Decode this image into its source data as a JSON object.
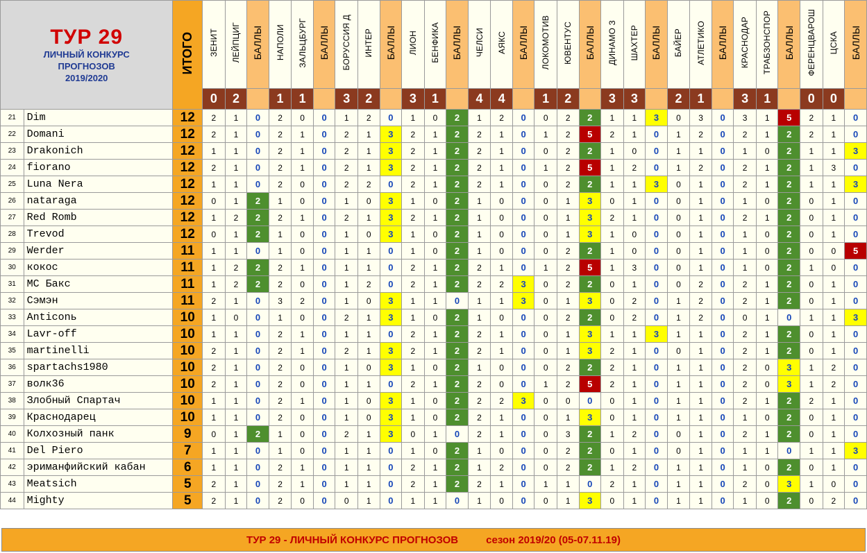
{
  "title": {
    "tur": "ТУР 29",
    "line1": "ЛИЧНЫЙ КОНКУРС",
    "line2": "ПРОГНОЗОВ",
    "season": "2019/2020"
  },
  "itogo_label": "ИТОГО",
  "balls_label": "БАЛЛЫ",
  "matches": [
    {
      "home": "ЗЕНИТ",
      "away": "ЛЕЙПЦИГ",
      "score": [
        "0",
        "2"
      ]
    },
    {
      "home": "НАПОЛИ",
      "away": "ЗАЛЬЦБУРГ",
      "score": [
        "1",
        "1"
      ]
    },
    {
      "home": "БОРУССИЯ Д",
      "away": "ИНТЕР",
      "score": [
        "3",
        "2"
      ]
    },
    {
      "home": "ЛИОН",
      "away": "БЕНФИКА",
      "score": [
        "3",
        "1"
      ]
    },
    {
      "home": "ЧЕЛСИ",
      "away": "АЯКС",
      "score": [
        "4",
        "4"
      ]
    },
    {
      "home": "ЛОКОМОТИВ",
      "away": "ЮВЕНТУС",
      "score": [
        "1",
        "2"
      ]
    },
    {
      "home": "ДИНАМО З",
      "away": "ШАХТЕР",
      "score": [
        "3",
        "3"
      ]
    },
    {
      "home": "БАЙЕР",
      "away": "АТЛЕТИКО",
      "score": [
        "2",
        "1"
      ]
    },
    {
      "home": "КРАСНОДАР",
      "away": "ТРАБЗОНСПОР",
      "score": [
        "3",
        "1"
      ]
    },
    {
      "home": "ФЕРЕНЦВАРОШ",
      "away": "ЦСКА",
      "score": [
        "0",
        "0"
      ]
    }
  ],
  "rows": [
    {
      "n": "21",
      "name": "Dim",
      "total": "12",
      "cells": [
        [
          "2",
          "1",
          "0"
        ],
        [
          "2",
          "0",
          "0"
        ],
        [
          "1",
          "2",
          "0"
        ],
        [
          "1",
          "0",
          "2"
        ],
        [
          "1",
          "2",
          "0"
        ],
        [
          "0",
          "2",
          "2"
        ],
        [
          "1",
          "1",
          "3"
        ],
        [
          "0",
          "3",
          "0"
        ],
        [
          "3",
          "1",
          "5"
        ],
        [
          "2",
          "1",
          "0"
        ]
      ]
    },
    {
      "n": "22",
      "name": "Domani",
      "total": "12",
      "cells": [
        [
          "2",
          "1",
          "0"
        ],
        [
          "2",
          "1",
          "0"
        ],
        [
          "2",
          "1",
          "3"
        ],
        [
          "2",
          "1",
          "2"
        ],
        [
          "2",
          "1",
          "0"
        ],
        [
          "1",
          "2",
          "5"
        ],
        [
          "2",
          "1",
          "0"
        ],
        [
          "1",
          "2",
          "0"
        ],
        [
          "2",
          "1",
          "2"
        ],
        [
          "2",
          "1",
          "0"
        ]
      ]
    },
    {
      "n": "23",
      "name": "Drakonich",
      "total": "12",
      "cells": [
        [
          "1",
          "1",
          "0"
        ],
        [
          "2",
          "1",
          "0"
        ],
        [
          "2",
          "1",
          "3"
        ],
        [
          "2",
          "1",
          "2"
        ],
        [
          "2",
          "1",
          "0"
        ],
        [
          "0",
          "2",
          "2"
        ],
        [
          "1",
          "0",
          "0"
        ],
        [
          "1",
          "1",
          "0"
        ],
        [
          "1",
          "0",
          "2"
        ],
        [
          "1",
          "1",
          "3"
        ]
      ]
    },
    {
      "n": "24",
      "name": "fiorano",
      "total": "12",
      "cells": [
        [
          "2",
          "1",
          "0"
        ],
        [
          "2",
          "1",
          "0"
        ],
        [
          "2",
          "1",
          "3"
        ],
        [
          "2",
          "1",
          "2"
        ],
        [
          "2",
          "1",
          "0"
        ],
        [
          "1",
          "2",
          "5"
        ],
        [
          "1",
          "2",
          "0"
        ],
        [
          "1",
          "2",
          "0"
        ],
        [
          "2",
          "1",
          "2"
        ],
        [
          "1",
          "3",
          "0"
        ]
      ]
    },
    {
      "n": "25",
      "name": "Luna Nera",
      "total": "12",
      "cells": [
        [
          "1",
          "1",
          "0"
        ],
        [
          "2",
          "0",
          "0"
        ],
        [
          "2",
          "2",
          "0"
        ],
        [
          "2",
          "1",
          "2"
        ],
        [
          "2",
          "1",
          "0"
        ],
        [
          "0",
          "2",
          "2"
        ],
        [
          "1",
          "1",
          "3"
        ],
        [
          "0",
          "1",
          "0"
        ],
        [
          "2",
          "1",
          "2"
        ],
        [
          "1",
          "1",
          "3"
        ]
      ]
    },
    {
      "n": "26",
      "name": "nataraga",
      "total": "12",
      "cells": [
        [
          "0",
          "1",
          "2"
        ],
        [
          "1",
          "0",
          "0"
        ],
        [
          "1",
          "0",
          "3"
        ],
        [
          "1",
          "0",
          "2"
        ],
        [
          "1",
          "0",
          "0"
        ],
        [
          "0",
          "1",
          "3"
        ],
        [
          "0",
          "1",
          "0"
        ],
        [
          "0",
          "1",
          "0"
        ],
        [
          "1",
          "0",
          "2"
        ],
        [
          "0",
          "1",
          "0"
        ]
      ]
    },
    {
      "n": "27",
      "name": "Red Romb",
      "total": "12",
      "cells": [
        [
          "1",
          "2",
          "2"
        ],
        [
          "2",
          "1",
          "0"
        ],
        [
          "2",
          "1",
          "3"
        ],
        [
          "2",
          "1",
          "2"
        ],
        [
          "1",
          "0",
          "0"
        ],
        [
          "0",
          "1",
          "3"
        ],
        [
          "2",
          "1",
          "0"
        ],
        [
          "0",
          "1",
          "0"
        ],
        [
          "2",
          "1",
          "2"
        ],
        [
          "0",
          "1",
          "0"
        ]
      ]
    },
    {
      "n": "28",
      "name": "Trevod",
      "total": "12",
      "cells": [
        [
          "0",
          "1",
          "2"
        ],
        [
          "1",
          "0",
          "0"
        ],
        [
          "1",
          "0",
          "3"
        ],
        [
          "1",
          "0",
          "2"
        ],
        [
          "1",
          "0",
          "0"
        ],
        [
          "0",
          "1",
          "3"
        ],
        [
          "1",
          "0",
          "0"
        ],
        [
          "0",
          "1",
          "0"
        ],
        [
          "1",
          "0",
          "2"
        ],
        [
          "0",
          "1",
          "0"
        ]
      ]
    },
    {
      "n": "29",
      "name": "Werder",
      "total": "11",
      "cells": [
        [
          "1",
          "1",
          "0"
        ],
        [
          "1",
          "0",
          "0"
        ],
        [
          "1",
          "1",
          "0"
        ],
        [
          "1",
          "0",
          "2"
        ],
        [
          "1",
          "0",
          "0"
        ],
        [
          "0",
          "2",
          "2"
        ],
        [
          "1",
          "0",
          "0"
        ],
        [
          "0",
          "1",
          "0"
        ],
        [
          "1",
          "0",
          "2"
        ],
        [
          "0",
          "0",
          "5"
        ]
      ]
    },
    {
      "n": "30",
      "name": "кокос",
      "total": "11",
      "cells": [
        [
          "1",
          "2",
          "2"
        ],
        [
          "2",
          "1",
          "0"
        ],
        [
          "1",
          "1",
          "0"
        ],
        [
          "2",
          "1",
          "2"
        ],
        [
          "2",
          "1",
          "0"
        ],
        [
          "1",
          "2",
          "5"
        ],
        [
          "1",
          "3",
          "0"
        ],
        [
          "0",
          "1",
          "0"
        ],
        [
          "1",
          "0",
          "2"
        ],
        [
          "1",
          "0",
          "0"
        ]
      ]
    },
    {
      "n": "31",
      "name": "МС Бакс",
      "total": "11",
      "cells": [
        [
          "1",
          "2",
          "2"
        ],
        [
          "2",
          "0",
          "0"
        ],
        [
          "1",
          "2",
          "0"
        ],
        [
          "2",
          "1",
          "2"
        ],
        [
          "2",
          "2",
          "3"
        ],
        [
          "0",
          "2",
          "2"
        ],
        [
          "0",
          "1",
          "0"
        ],
        [
          "0",
          "2",
          "0"
        ],
        [
          "2",
          "1",
          "2"
        ],
        [
          "0",
          "1",
          "0"
        ]
      ]
    },
    {
      "n": "32",
      "name": "Сэмэн",
      "total": "11",
      "cells": [
        [
          "2",
          "1",
          "0"
        ],
        [
          "3",
          "2",
          "0"
        ],
        [
          "1",
          "0",
          "3"
        ],
        [
          "1",
          "1",
          "0"
        ],
        [
          "1",
          "1",
          "3"
        ],
        [
          "0",
          "1",
          "3"
        ],
        [
          "0",
          "2",
          "0"
        ],
        [
          "1",
          "2",
          "0"
        ],
        [
          "2",
          "1",
          "2"
        ],
        [
          "0",
          "1",
          "0"
        ]
      ]
    },
    {
      "n": "33",
      "name": "Anticonь",
      "total": "10",
      "cells": [
        [
          "1",
          "0",
          "0"
        ],
        [
          "1",
          "0",
          "0"
        ],
        [
          "2",
          "1",
          "3"
        ],
        [
          "1",
          "0",
          "2"
        ],
        [
          "1",
          "0",
          "0"
        ],
        [
          "0",
          "2",
          "2"
        ],
        [
          "0",
          "2",
          "0"
        ],
        [
          "1",
          "2",
          "0"
        ],
        [
          "0",
          "1",
          "0"
        ],
        [
          "1",
          "1",
          "3"
        ]
      ]
    },
    {
      "n": "34",
      "name": "Lavr-off",
      "total": "10",
      "cells": [
        [
          "1",
          "1",
          "0"
        ],
        [
          "2",
          "1",
          "0"
        ],
        [
          "1",
          "1",
          "0"
        ],
        [
          "2",
          "1",
          "2"
        ],
        [
          "2",
          "1",
          "0"
        ],
        [
          "0",
          "1",
          "3"
        ],
        [
          "1",
          "1",
          "3"
        ],
        [
          "1",
          "1",
          "0"
        ],
        [
          "2",
          "1",
          "2"
        ],
        [
          "0",
          "1",
          "0"
        ]
      ]
    },
    {
      "n": "35",
      "name": "martinelli",
      "total": "10",
      "cells": [
        [
          "2",
          "1",
          "0"
        ],
        [
          "2",
          "1",
          "0"
        ],
        [
          "2",
          "1",
          "3"
        ],
        [
          "2",
          "1",
          "2"
        ],
        [
          "2",
          "1",
          "0"
        ],
        [
          "0",
          "1",
          "3"
        ],
        [
          "2",
          "1",
          "0"
        ],
        [
          "0",
          "1",
          "0"
        ],
        [
          "2",
          "1",
          "2"
        ],
        [
          "0",
          "1",
          "0"
        ]
      ]
    },
    {
      "n": "36",
      "name": "spartachs1980",
      "total": "10",
      "cells": [
        [
          "2",
          "1",
          "0"
        ],
        [
          "2",
          "0",
          "0"
        ],
        [
          "1",
          "0",
          "3"
        ],
        [
          "1",
          "0",
          "2"
        ],
        [
          "1",
          "0",
          "0"
        ],
        [
          "0",
          "2",
          "2"
        ],
        [
          "2",
          "1",
          "0"
        ],
        [
          "1",
          "1",
          "0"
        ],
        [
          "2",
          "0",
          "3"
        ],
        [
          "1",
          "2",
          "0"
        ]
      ]
    },
    {
      "n": "37",
      "name": "волк36",
      "total": "10",
      "cells": [
        [
          "2",
          "1",
          "0"
        ],
        [
          "2",
          "0",
          "0"
        ],
        [
          "1",
          "1",
          "0"
        ],
        [
          "2",
          "1",
          "2"
        ],
        [
          "2",
          "0",
          "0"
        ],
        [
          "1",
          "2",
          "5"
        ],
        [
          "2",
          "1",
          "0"
        ],
        [
          "1",
          "1",
          "0"
        ],
        [
          "2",
          "0",
          "3"
        ],
        [
          "1",
          "2",
          "0"
        ]
      ]
    },
    {
      "n": "38",
      "name": "Злобный Спартач",
      "total": "10",
      "cells": [
        [
          "1",
          "1",
          "0"
        ],
        [
          "2",
          "1",
          "0"
        ],
        [
          "1",
          "0",
          "3"
        ],
        [
          "1",
          "0",
          "2"
        ],
        [
          "2",
          "2",
          "3"
        ],
        [
          "0",
          "0",
          "0"
        ],
        [
          "0",
          "1",
          "0"
        ],
        [
          "1",
          "1",
          "0"
        ],
        [
          "2",
          "1",
          "2"
        ],
        [
          "2",
          "1",
          "0"
        ]
      ]
    },
    {
      "n": "39",
      "name": "Краснодарец",
      "total": "10",
      "cells": [
        [
          "1",
          "1",
          "0"
        ],
        [
          "2",
          "0",
          "0"
        ],
        [
          "1",
          "0",
          "3"
        ],
        [
          "1",
          "0",
          "2"
        ],
        [
          "2",
          "1",
          "0"
        ],
        [
          "0",
          "1",
          "3"
        ],
        [
          "0",
          "1",
          "0"
        ],
        [
          "1",
          "1",
          "0"
        ],
        [
          "1",
          "0",
          "2"
        ],
        [
          "0",
          "1",
          "0"
        ]
      ]
    },
    {
      "n": "40",
      "name": "Колхозный панк",
      "total": "9",
      "cells": [
        [
          "0",
          "1",
          "2"
        ],
        [
          "1",
          "0",
          "0"
        ],
        [
          "2",
          "1",
          "3"
        ],
        [
          "0",
          "1",
          "0"
        ],
        [
          "2",
          "1",
          "0"
        ],
        [
          "0",
          "3",
          "2"
        ],
        [
          "1",
          "2",
          "0"
        ],
        [
          "0",
          "1",
          "0"
        ],
        [
          "2",
          "1",
          "2"
        ],
        [
          "0",
          "1",
          "0"
        ]
      ]
    },
    {
      "n": "41",
      "name": "Del Piero",
      "total": "7",
      "cells": [
        [
          "1",
          "1",
          "0"
        ],
        [
          "1",
          "0",
          "0"
        ],
        [
          "1",
          "1",
          "0"
        ],
        [
          "1",
          "0",
          "2"
        ],
        [
          "1",
          "0",
          "0"
        ],
        [
          "0",
          "2",
          "2"
        ],
        [
          "0",
          "1",
          "0"
        ],
        [
          "0",
          "1",
          "0"
        ],
        [
          "1",
          "1",
          "0"
        ],
        [
          "1",
          "1",
          "3"
        ]
      ]
    },
    {
      "n": "42",
      "name": "эриманфийский кабан",
      "total": "6",
      "cells": [
        [
          "1",
          "1",
          "0"
        ],
        [
          "2",
          "1",
          "0"
        ],
        [
          "1",
          "1",
          "0"
        ],
        [
          "2",
          "1",
          "2"
        ],
        [
          "1",
          "2",
          "0"
        ],
        [
          "0",
          "2",
          "2"
        ],
        [
          "1",
          "2",
          "0"
        ],
        [
          "1",
          "1",
          "0"
        ],
        [
          "1",
          "0",
          "2"
        ],
        [
          "0",
          "1",
          "0"
        ]
      ]
    },
    {
      "n": "43",
      "name": "Meatsich",
      "total": "5",
      "cells": [
        [
          "2",
          "1",
          "0"
        ],
        [
          "2",
          "1",
          "0"
        ],
        [
          "1",
          "1",
          "0"
        ],
        [
          "2",
          "1",
          "2"
        ],
        [
          "2",
          "1",
          "0"
        ],
        [
          "1",
          "1",
          "0"
        ],
        [
          "2",
          "1",
          "0"
        ],
        [
          "1",
          "1",
          "0"
        ],
        [
          "2",
          "0",
          "3"
        ],
        [
          "1",
          "0",
          "0"
        ]
      ]
    },
    {
      "n": "44",
      "name": "Mighty",
      "total": "5",
      "cells": [
        [
          "2",
          "1",
          "0"
        ],
        [
          "2",
          "0",
          "0"
        ],
        [
          "0",
          "1",
          "0"
        ],
        [
          "1",
          "1",
          "0"
        ],
        [
          "1",
          "0",
          "0"
        ],
        [
          "0",
          "1",
          "3"
        ],
        [
          "0",
          "1",
          "0"
        ],
        [
          "1",
          "1",
          "0"
        ],
        [
          "1",
          "0",
          "2"
        ],
        [
          "0",
          "2",
          "0"
        ]
      ]
    }
  ],
  "footer": {
    "left": "ТУР 29 - ЛИЧНЫЙ КОНКУРС ПРОГНОЗОВ",
    "right": "сезон 2019/20  (05-07.11.19)"
  },
  "colors": {
    "total_orange": "#f5a623",
    "balls_orange": "#fbbf71",
    "score_brown": "#8b3a1f",
    "pts2_green": "#4e8f2e",
    "pts3_yellow": "#ffff00",
    "pts5_red": "#b80000",
    "pts_text_blue": "#1747b8",
    "title_red": "#d10000"
  }
}
